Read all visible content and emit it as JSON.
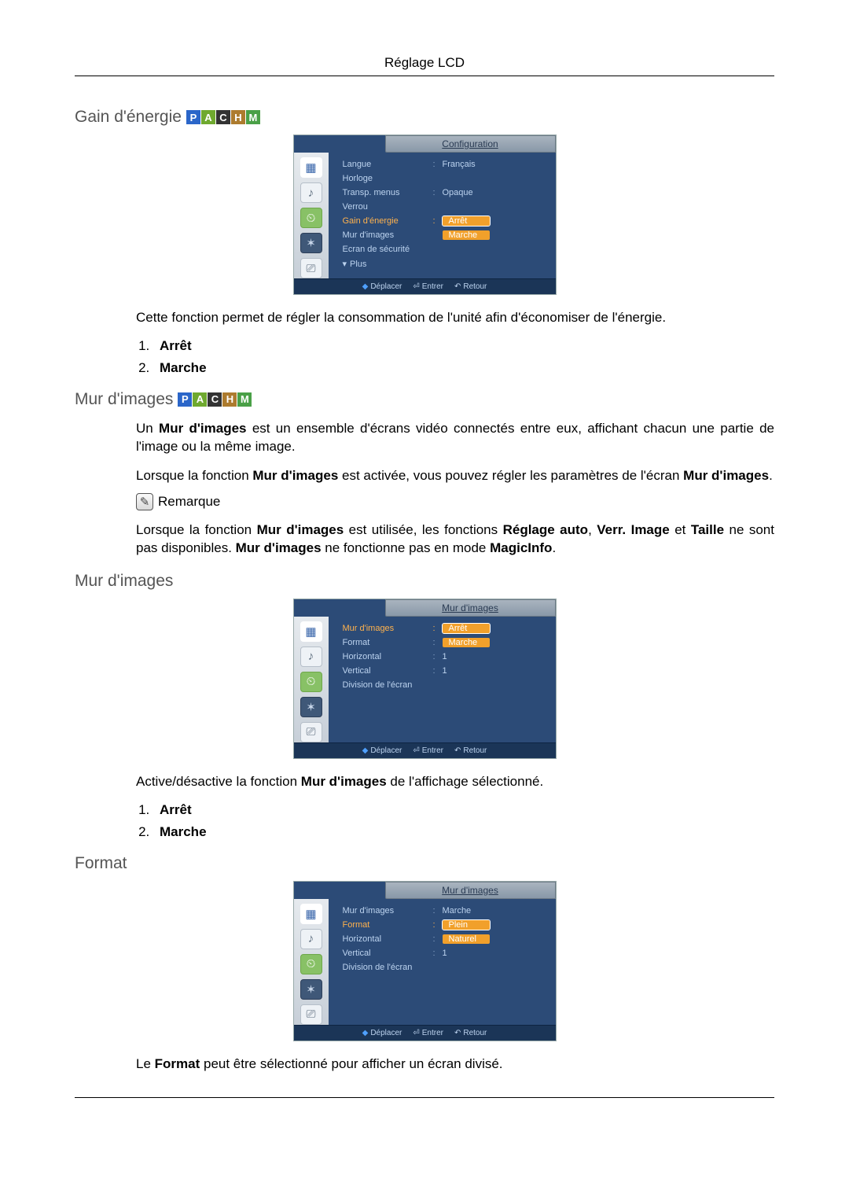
{
  "page_title": "Réglage LCD",
  "sections": {
    "gain": {
      "heading": "Gain d'énergie",
      "badges": [
        "P",
        "A",
        "C",
        "H",
        "M"
      ],
      "badge_colors": [
        "#2b66c9",
        "#6fa92f",
        "#333333",
        "#ad7b2e",
        "#4aa047"
      ],
      "para1": "Cette fonction permet de régler la consommation de l'unité afin d'économiser de l'énergie.",
      "opt1": "Arrêt",
      "opt2": "Marche"
    },
    "mur_intro": {
      "heading": "Mur d'images",
      "badges": [
        "P",
        "A",
        "C",
        "H",
        "M"
      ],
      "para1_a": "Un ",
      "para1_b": "Mur d'images",
      "para1_c": " est un ensemble d'écrans vidéo connectés entre eux, affichant chacun une partie de l'image ou la même image.",
      "para2_a": "Lorsque la fonction ",
      "para2_b": "Mur d'images",
      "para2_c": " est activée, vous pouvez régler les paramètres de l'écran ",
      "para2_d": "Mur d'images",
      "para2_e": ".",
      "note_label": "Remarque",
      "para3_a": "Lorsque la fonction ",
      "para3_b": "Mur d'images",
      "para3_c": " est utilisée, les fonctions ",
      "para3_d": "Réglage auto",
      "para3_e": ", ",
      "para3_f": "Verr. Image",
      "para3_g": " et ",
      "para3_h": "Taille",
      "para3_i": " ne sont pas disponibles. ",
      "para3_j": "Mur d'images",
      "para3_k": " ne fonctionne pas en mode ",
      "para3_l": "MagicInfo",
      "para3_m": "."
    },
    "mur": {
      "heading": "Mur d'images",
      "para1_a": "Active/désactive la fonction ",
      "para1_b": "Mur d'images",
      "para1_c": " de l'affichage sélectionné.",
      "opt1": "Arrêt",
      "opt2": "Marche"
    },
    "format": {
      "heading": "Format",
      "para1_a": "Le ",
      "para1_b": "Format",
      "para1_c": " peut être sélectionné pour afficher un écran divisé."
    }
  },
  "osd_footer": {
    "move": "Déplacer",
    "enter": "Entrer",
    "return": "Retour"
  },
  "osd1": {
    "title": "Configuration",
    "rows": [
      {
        "label": "Langue",
        "value": "Français",
        "colon": ":"
      },
      {
        "label": "Horloge",
        "value": "",
        "colon": ""
      },
      {
        "label": "Transp. menus",
        "value": "Opaque",
        "colon": ":"
      },
      {
        "label": "Verrou",
        "value": "",
        "colon": ""
      },
      {
        "label": "Gain d'énergie",
        "value": "Arrêt",
        "colon": ":",
        "highlight": true,
        "box": "sel"
      },
      {
        "label": "Mur d'images",
        "value": "Marche",
        "colon": "",
        "box": "plain"
      },
      {
        "label": "Ecran de sécurité",
        "value": "",
        "colon": ""
      },
      {
        "label": "Plus",
        "value": "",
        "colon": "",
        "tri": true
      }
    ]
  },
  "osd2": {
    "title": "Mur d'images",
    "rows": [
      {
        "label": "Mur d'images",
        "value": "Arrêt",
        "colon": ":",
        "highlight": true,
        "box": "sel"
      },
      {
        "label": "Format",
        "value": "Marche",
        "colon": ":",
        "box": "plain"
      },
      {
        "label": "Horizontal",
        "value": "1",
        "colon": ":"
      },
      {
        "label": "Vertical",
        "value": "1",
        "colon": ":"
      },
      {
        "label": "Division de l'écran",
        "value": "",
        "colon": ""
      }
    ]
  },
  "osd3": {
    "title": "Mur d'images",
    "rows": [
      {
        "label": "Mur d'images",
        "value": "Marche",
        "colon": ":"
      },
      {
        "label": "Format",
        "value": "Plein",
        "colon": ":",
        "highlight": true,
        "box": "sel"
      },
      {
        "label": "Horizontal",
        "value": "Naturel",
        "colon": ":",
        "box": "plain"
      },
      {
        "label": "Vertical",
        "value": "1",
        "colon": ":"
      },
      {
        "label": "Division de l'écran",
        "value": "",
        "colon": ""
      }
    ]
  }
}
